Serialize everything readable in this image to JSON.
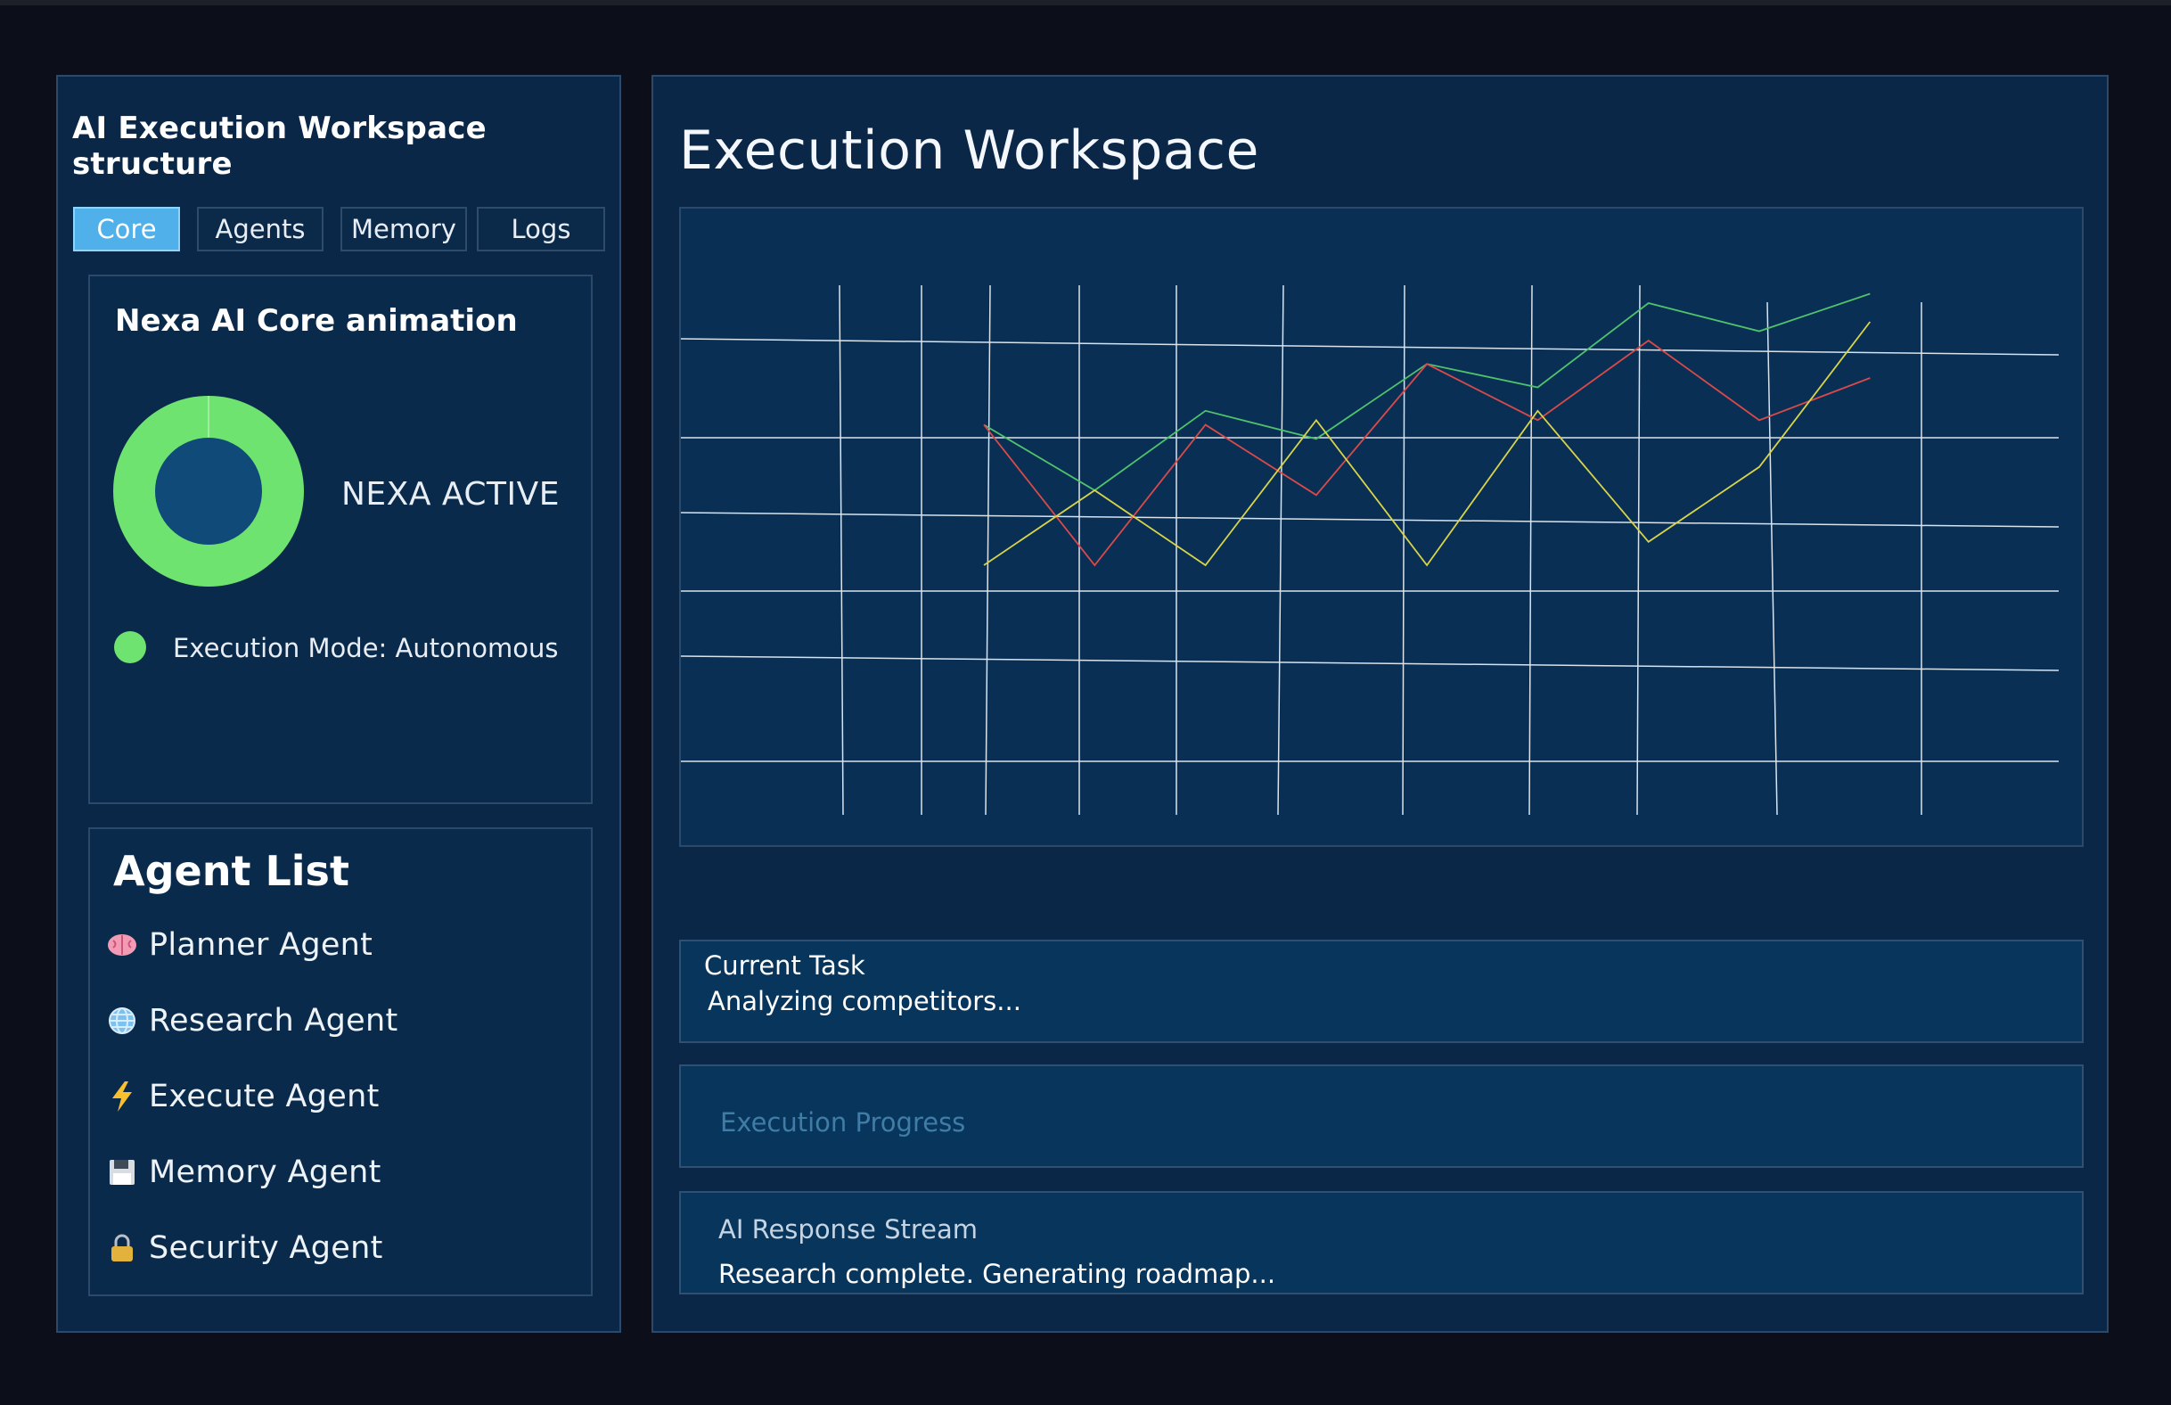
{
  "sidebar": {
    "title": "AI Execution Workspace structure",
    "tabs": [
      {
        "label": "Core",
        "active": true
      },
      {
        "label": "Agents",
        "active": false
      },
      {
        "label": "Memory",
        "active": false
      },
      {
        "label": "Logs",
        "active": false
      }
    ],
    "core": {
      "title": "Nexa AI Core animation",
      "status": "NEXA ACTIVE",
      "mode": "Execution Mode: Autonomous",
      "status_color": "#6fe36f"
    },
    "agents": {
      "title": "Agent List",
      "items": [
        {
          "label": "Planner Agent",
          "icon": "brain-icon"
        },
        {
          "label": "Research Agent",
          "icon": "globe-icon"
        },
        {
          "label": "Execute Agent",
          "icon": "lightning-icon"
        },
        {
          "label": "Memory Agent",
          "icon": "floppy-disk-icon"
        },
        {
          "label": "Security Agent",
          "icon": "lock-icon"
        }
      ]
    }
  },
  "main": {
    "title": "Execution Workspace",
    "current_task": {
      "label": "Current Task",
      "value": "Analyzing competitors..."
    },
    "progress": {
      "placeholder": "Execution Progress"
    },
    "stream": {
      "label": "AI Response Stream",
      "value": "Research complete.  Generating roadmap..."
    }
  },
  "chart_data": {
    "type": "line",
    "title": "",
    "xlabel": "",
    "ylabel": "",
    "grid": true,
    "legend": "none",
    "series": [
      {
        "color": "#4fc36b",
        "values": [
          [
            1,
            4.0
          ],
          [
            2,
            2.6
          ],
          [
            3,
            4.3
          ],
          [
            4,
            3.7
          ],
          [
            5,
            5.3
          ],
          [
            6,
            4.8
          ],
          [
            7,
            6.6
          ],
          [
            8,
            6.0
          ],
          [
            9,
            6.8
          ]
        ]
      },
      {
        "color": "#d94a4a",
        "values": [
          [
            1,
            4.0
          ],
          [
            2,
            1.0
          ],
          [
            3,
            4.0
          ],
          [
            4,
            2.5
          ],
          [
            5,
            5.3
          ],
          [
            6,
            4.1
          ],
          [
            7,
            5.8
          ],
          [
            8,
            4.1
          ],
          [
            9,
            5.0
          ]
        ]
      },
      {
        "color": "#d8d44a",
        "values": [
          [
            1,
            1.0
          ],
          [
            2,
            2.6
          ],
          [
            3,
            1.0
          ],
          [
            4,
            4.1
          ],
          [
            5,
            1.0
          ],
          [
            6,
            4.3
          ],
          [
            7,
            1.5
          ],
          [
            8,
            3.1
          ],
          [
            9,
            6.2
          ]
        ]
      }
    ]
  }
}
